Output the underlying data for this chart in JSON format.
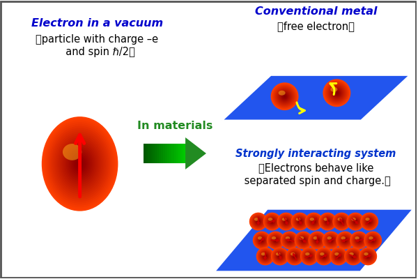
{
  "bg_color": "#ffffff",
  "title_vacuum": "Electron in a vacuum",
  "sub1_vacuum": "（particle with charge –e",
  "sub2_vacuum": "  and spin ℏ/2）",
  "title_metal": "Conventional metal",
  "sub_metal": "（free electron）",
  "title_strong": "Strongly interacting system",
  "sub1_strong": "（Electrons behave like",
  "sub2_strong": " separated spin and charge.）",
  "arrow_label": "In materials",
  "blue_plate": "#2255ee",
  "text_blue": "#0000cc",
  "text_strong_blue": "#0033cc",
  "green_dark": "#228B22",
  "green_light": "#aaddaa"
}
